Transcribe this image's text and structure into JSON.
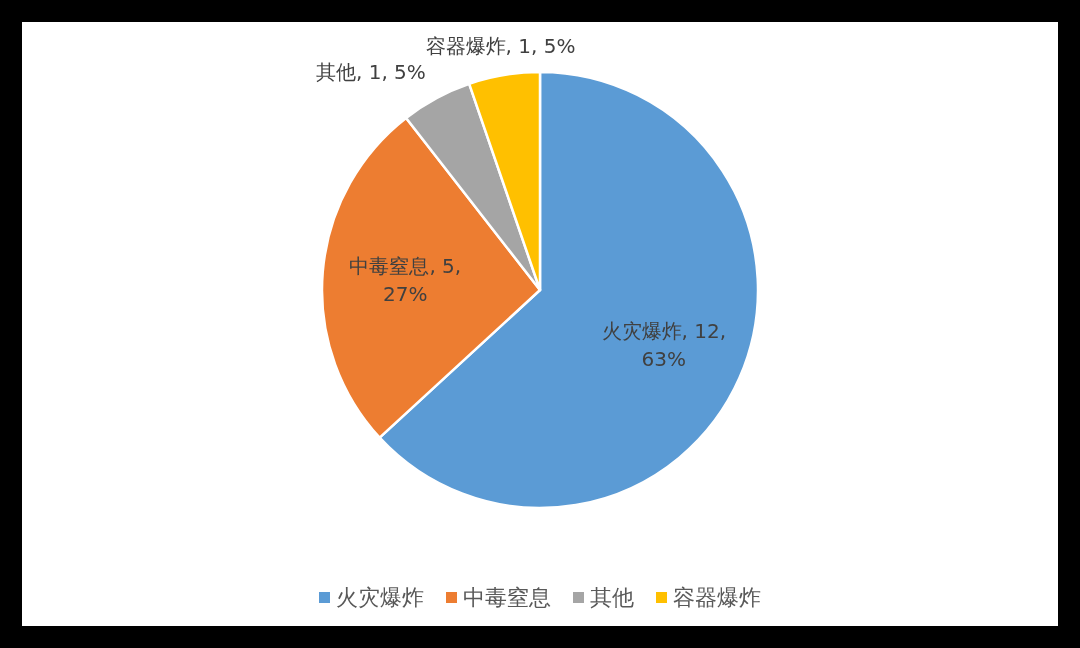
{
  "chart_data": {
    "type": "pie",
    "categories": [
      "火灾爆炸",
      "中毒窒息",
      "其他",
      "容器爆炸"
    ],
    "values": [
      12,
      5,
      1,
      1
    ],
    "colors": [
      "#5b9bd5",
      "#ed7d31",
      "#a5a5a5",
      "#ffc000"
    ],
    "value_labels": [
      "火灾爆炸, 12, 63%",
      "中毒窒息, 5, 27%",
      "其他, 1, 5%",
      "容器爆炸, 1, 5%"
    ],
    "legend": "bottom"
  }
}
